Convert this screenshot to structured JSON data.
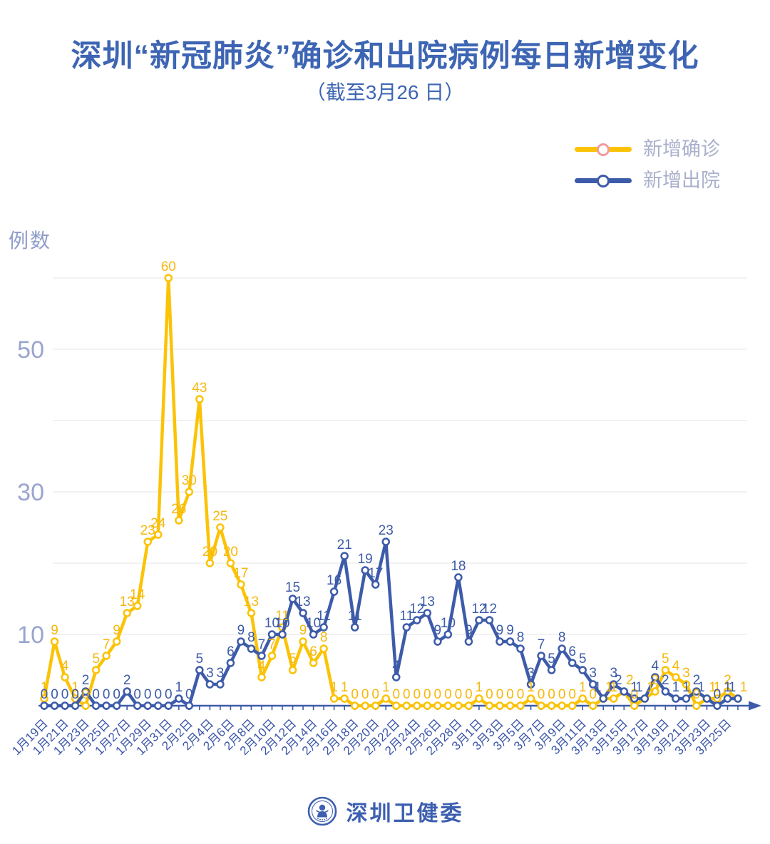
{
  "page": {
    "title": "深圳“新冠肺炎”确诊和出院病例每日新增变化",
    "subtitle": "（截至3月26 日）"
  },
  "legend": [
    {
      "label": "新增确诊",
      "color": "#FBC306",
      "marker_ring": "#F29B9B"
    },
    {
      "label": "新增出院",
      "color": "#3D5BA9",
      "marker_ring": "#3D5BA9"
    }
  ],
  "y_axis_title": "例数",
  "footer": {
    "brand": "深圳卫健委"
  },
  "colors": {
    "title_blue": "#3D65B3",
    "axis_blue": "#3A55A8",
    "tick_label": "#99A5CE",
    "gridline": "#EAEAEC",
    "confirmed": "#FBC306",
    "confirmed_label": "#F6B80D",
    "discharged": "#3D5BA9"
  },
  "chart_data": {
    "type": "line",
    "title": "深圳“新冠肺炎”确诊和出院病例每日新增变化",
    "subtitle": "（截至3月26 日）",
    "y_axis_label": "例数",
    "legend_position": "top-right",
    "grid": true,
    "ylim": [
      0,
      62
    ],
    "y_gridlines": [
      10,
      20,
      30,
      40,
      50,
      60
    ],
    "y_ticks_labeled": [
      10,
      30,
      50
    ],
    "x_tick_every": 2,
    "x_tick_labels": [
      "1月19日",
      "1月21日",
      "1月23日",
      "1月25日",
      "1月27日",
      "1月29日",
      "1月31日",
      "2月2日",
      "2月4日",
      "2月6日",
      "2月8日",
      "2月10日",
      "2月12日",
      "2月14日",
      "2月16日",
      "2月18日",
      "2月20日",
      "2月22日",
      "2月24日",
      "2月26日",
      "2月28日",
      "3月1日",
      "3月3日",
      "3月5日",
      "3月7日",
      "3月9日",
      "3月11日",
      "3月13日",
      "3月15日",
      "3月17日",
      "3月19日",
      "3月21日",
      "3月23日",
      "3月25日"
    ],
    "series": [
      {
        "name": "新增确诊",
        "color": "#FBC306",
        "values": [
          1,
          9,
          4,
          1,
          0,
          5,
          7,
          9,
          13,
          14,
          23,
          24,
          60,
          26,
          30,
          43,
          20,
          25,
          20,
          17,
          13,
          4,
          7,
          11,
          5,
          9,
          6,
          8,
          1,
          1,
          0,
          0,
          0,
          1,
          0,
          0,
          0,
          0,
          0,
          0,
          0,
          0,
          1,
          0,
          0,
          0,
          0,
          1,
          0,
          0,
          0,
          0,
          1,
          0,
          1,
          1,
          2,
          0,
          1,
          2,
          5,
          4,
          3,
          0,
          1,
          1,
          2,
          1
        ]
      },
      {
        "name": "新增出院",
        "color": "#3D5BA9",
        "values": [
          0,
          0,
          0,
          0,
          2,
          0,
          0,
          0,
          2,
          0,
          0,
          0,
          0,
          1,
          0,
          5,
          3,
          3,
          6,
          9,
          8,
          7,
          10,
          10,
          15,
          13,
          10,
          11,
          16,
          21,
          11,
          19,
          17,
          23,
          4,
          11,
          12,
          13,
          9,
          10,
          18,
          9,
          12,
          12,
          9,
          9,
          8,
          3,
          7,
          5,
          8,
          6,
          5,
          3,
          1,
          3,
          2,
          1,
          1,
          4,
          2,
          1,
          1,
          2,
          1,
          0,
          1,
          1
        ]
      }
    ]
  }
}
